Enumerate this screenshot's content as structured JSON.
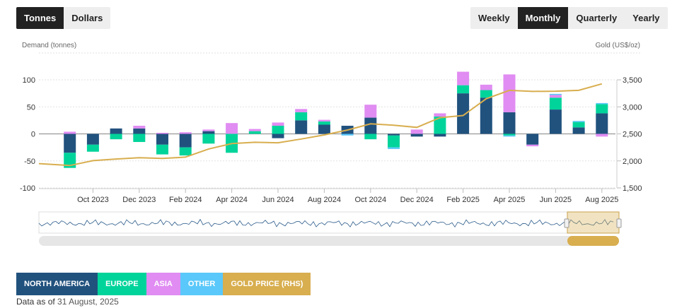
{
  "controls": {
    "units": [
      {
        "label": "Tonnes",
        "active": true
      },
      {
        "label": "Dollars",
        "active": false
      }
    ],
    "periods": [
      {
        "label": "Weekly",
        "active": false
      },
      {
        "label": "Monthly",
        "active": true
      },
      {
        "label": "Quarterly",
        "active": false
      },
      {
        "label": "Yearly",
        "active": false
      }
    ]
  },
  "chart_data": {
    "type": "bar",
    "stacked": true,
    "ylabel": "Demand (tonnes)",
    "y2label": "Gold (US$/oz)",
    "ylim": [
      -100,
      100
    ],
    "y_ticks": [
      100,
      50,
      0,
      -50,
      -100
    ],
    "y2lim": [
      1500,
      3500
    ],
    "y2_ticks": [
      "3,500",
      "3,000",
      "2,500",
      "2,000",
      "1,500"
    ],
    "x_tick_labels": [
      {
        "index": 2,
        "label": "Oct 2023"
      },
      {
        "index": 4,
        "label": "Dec 2023"
      },
      {
        "index": 6,
        "label": "Feb 2024"
      },
      {
        "index": 8,
        "label": "Apr 2024"
      },
      {
        "index": 10,
        "label": "Jun 2024"
      },
      {
        "index": 12,
        "label": "Aug 2024"
      },
      {
        "index": 14,
        "label": "Oct 2024"
      },
      {
        "index": 16,
        "label": "Dec 2024"
      },
      {
        "index": 18,
        "label": "Feb 2025"
      },
      {
        "index": 20,
        "label": "Apr 2025"
      },
      {
        "index": 22,
        "label": "Jun 2025"
      },
      {
        "index": 24,
        "label": "Aug 2025"
      }
    ],
    "categories": [
      "Aug 2023",
      "Sep 2023",
      "Oct 2023",
      "Nov 2023",
      "Dec 2023",
      "Jan 2024",
      "Feb 2024",
      "Mar 2024",
      "Apr 2024",
      "May 2024",
      "Jun 2024",
      "Jul 2024",
      "Aug 2024",
      "Sep 2024",
      "Oct 2024",
      "Nov 2024",
      "Dec 2024",
      "Jan 2025",
      "Feb 2025",
      "Mar 2025",
      "Apr 2025",
      "May 2025",
      "Jun 2025",
      "Jul 2025",
      "Aug 2025"
    ],
    "series": [
      {
        "name": "NORTH AMERICA",
        "color": "#21527e",
        "values": [
          0,
          -35,
          -20,
          10,
          10,
          -20,
          -25,
          5,
          0,
          0,
          -8,
          25,
          17,
          15,
          30,
          -3,
          -5,
          -5,
          75,
          67,
          40,
          -20,
          45,
          12,
          38
        ]
      },
      {
        "name": "EUROPE",
        "color": "#00d49b",
        "values": [
          0,
          -28,
          -13,
          -10,
          -15,
          -18,
          -15,
          -18,
          -35,
          5,
          15,
          15,
          6,
          0,
          -10,
          -22,
          0,
          32,
          15,
          14,
          -3,
          0,
          22,
          10,
          17
        ]
      },
      {
        "name": "ASIA",
        "color": "#e08cf2",
        "values": [
          0,
          4,
          0,
          0,
          5,
          2,
          3,
          3,
          20,
          4,
          6,
          6,
          3,
          0,
          24,
          0,
          8,
          6,
          25,
          10,
          70,
          -3,
          5,
          0,
          -5
        ]
      },
      {
        "name": "OTHER",
        "color": "#5ac8fa",
        "values": [
          0,
          0,
          0,
          0,
          0,
          0,
          0,
          0,
          0,
          0,
          0,
          0,
          0,
          -3,
          0,
          -3,
          0,
          0,
          0,
          0,
          -2,
          0,
          2,
          2,
          2
        ]
      }
    ],
    "line": {
      "name": "GOLD PRICE (RHS)",
      "color": "#d8ae4f",
      "axis": "right",
      "values": [
        1950,
        1915,
        2005,
        2035,
        2060,
        2045,
        2070,
        2220,
        2320,
        2345,
        2335,
        2405,
        2480,
        2570,
        2685,
        2660,
        2620,
        2800,
        2840,
        3150,
        3305,
        3285,
        3290,
        3305,
        3425
      ]
    },
    "legend": [
      "NORTH AMERICA",
      "EUROPE",
      "ASIA",
      "OTHER",
      "GOLD PRICE (RHS)"
    ],
    "legend_placement": "bottom"
  },
  "legend_items": [
    {
      "label": "NORTH AMERICA",
      "color": "#21527e"
    },
    {
      "label": "EUROPE",
      "color": "#00d49b"
    },
    {
      "label": "ASIA",
      "color": "#e08cf2"
    },
    {
      "label": "OTHER",
      "color": "#5ac8fa"
    },
    {
      "label": "GOLD PRICE (RHS)",
      "color": "#d8ae4f"
    }
  ],
  "footer": {
    "prefix": "Data as of",
    "date": "31 August, 2025"
  }
}
